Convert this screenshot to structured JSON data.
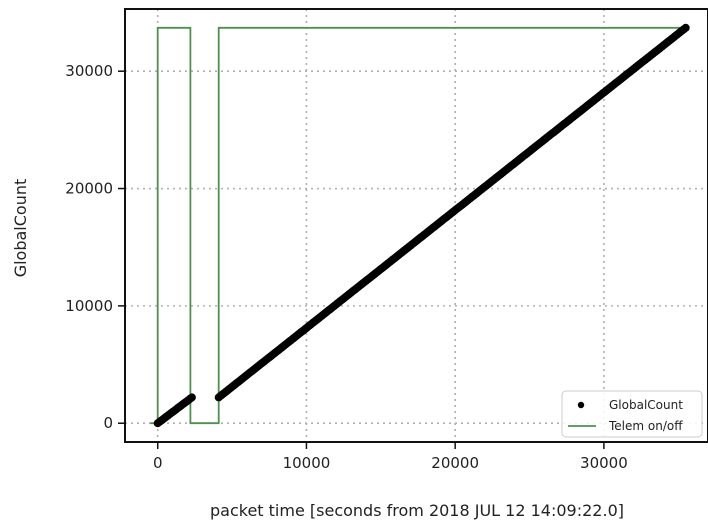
{
  "chart_data": {
    "type": "scatter",
    "title": "",
    "xlabel": "packet time [seconds from 2018 JUL 12 14:09:22.0]",
    "ylabel": "GlobalCount",
    "xlim": [
      -2200,
      37000
    ],
    "ylim": [
      -1600,
      35300
    ],
    "x_ticks": [
      0,
      10000,
      20000,
      30000
    ],
    "y_ticks": [
      0,
      10000,
      20000,
      30000
    ],
    "grid": true,
    "legend_position": "bottom-right",
    "series": [
      {
        "name": "GlobalCount",
        "kind": "scatter",
        "color": "#000000",
        "segments": [
          {
            "x": [
              0,
              2300
            ],
            "y": [
              0,
              2200
            ]
          },
          {
            "x": [
              4100,
              35500
            ],
            "y": [
              2200,
              33700
            ]
          }
        ]
      },
      {
        "name": "Telem on/off",
        "kind": "step-line",
        "color": "#4f8f4f",
        "x": [
          -500,
          0,
          0,
          2200,
          2200,
          4100,
          4100,
          35500
        ],
        "y": [
          0,
          0,
          33700,
          33700,
          0,
          0,
          33700,
          33700
        ]
      }
    ]
  }
}
